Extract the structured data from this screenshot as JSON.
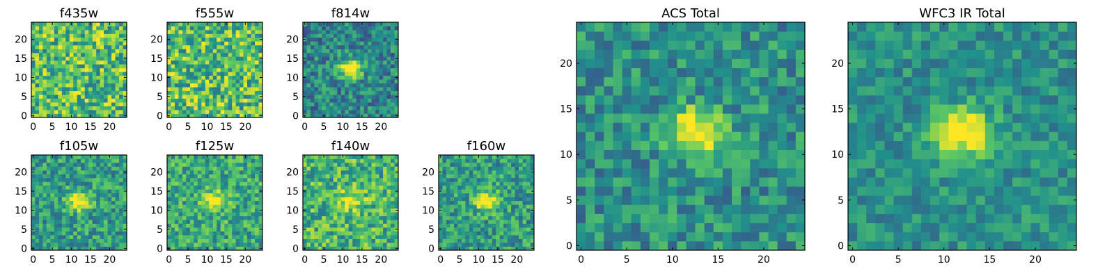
{
  "figure": {
    "colormap": [
      "#440154",
      "#3b528b",
      "#21918c",
      "#5ec962",
      "#fde725"
    ],
    "axes_color": "#000000",
    "background": "#ffffff"
  },
  "chart_data": [
    {
      "type": "heatmap",
      "title": "f435w",
      "size": 25,
      "xlim": [
        0,
        24
      ],
      "ylim": [
        0,
        24
      ],
      "xticks": [
        0,
        5,
        10,
        15,
        20
      ],
      "yticks": [
        0,
        5,
        10,
        15,
        20
      ],
      "peak": {
        "x": 12,
        "y": 12,
        "amplitude": 0.0
      },
      "noise": 0.6,
      "base": 0.7
    },
    {
      "type": "heatmap",
      "title": "f555w",
      "size": 25,
      "xlim": [
        0,
        24
      ],
      "ylim": [
        0,
        24
      ],
      "xticks": [
        0,
        5,
        10,
        15,
        20
      ],
      "yticks": [
        0,
        5,
        10,
        15,
        20
      ],
      "peak": {
        "x": 12,
        "y": 12,
        "amplitude": 0.0
      },
      "noise": 0.6,
      "base": 0.7
    },
    {
      "type": "heatmap",
      "title": "f814w",
      "size": 25,
      "xlim": [
        0,
        24
      ],
      "ylim": [
        0,
        24
      ],
      "xticks": [
        0,
        5,
        10,
        15,
        20
      ],
      "yticks": [
        0,
        5,
        10,
        15,
        20
      ],
      "peak": {
        "x": 12,
        "y": 12.5,
        "amplitude": 0.7
      },
      "noise": 0.45,
      "base": 0.45
    },
    {
      "type": "heatmap",
      "title": "f105w",
      "size": 25,
      "xlim": [
        0,
        24
      ],
      "ylim": [
        0,
        24
      ],
      "xticks": [
        0,
        5,
        10,
        15,
        20
      ],
      "yticks": [
        0,
        5,
        10,
        15,
        20
      ],
      "peak": {
        "x": 12,
        "y": 12.5,
        "amplitude": 0.55
      },
      "noise": 0.45,
      "base": 0.55
    },
    {
      "type": "heatmap",
      "title": "f125w",
      "size": 25,
      "xlim": [
        0,
        24
      ],
      "ylim": [
        0,
        24
      ],
      "xticks": [
        0,
        5,
        10,
        15,
        20
      ],
      "yticks": [
        0,
        5,
        10,
        15,
        20
      ],
      "peak": {
        "x": 12,
        "y": 12.5,
        "amplitude": 0.45
      },
      "noise": 0.45,
      "base": 0.6
    },
    {
      "type": "heatmap",
      "title": "f140w",
      "size": 25,
      "xlim": [
        0,
        24
      ],
      "ylim": [
        0,
        24
      ],
      "xticks": [
        0,
        5,
        10,
        15,
        20
      ],
      "yticks": [
        0,
        5,
        10,
        15,
        20
      ],
      "peak": {
        "x": 12,
        "y": 12.5,
        "amplitude": 0.4
      },
      "noise": 0.5,
      "base": 0.65
    },
    {
      "type": "heatmap",
      "title": "f160w",
      "size": 25,
      "xlim": [
        0,
        24
      ],
      "ylim": [
        0,
        24
      ],
      "xticks": [
        0,
        5,
        10,
        15,
        20
      ],
      "yticks": [
        0,
        5,
        10,
        15,
        20
      ],
      "peak": {
        "x": 12,
        "y": 12.5,
        "amplitude": 0.55
      },
      "noise": 0.45,
      "base": 0.55
    },
    {
      "type": "heatmap",
      "title": "ACS Total",
      "size": 25,
      "xlim": [
        0,
        24
      ],
      "ylim": [
        0,
        24
      ],
      "xticks": [
        0,
        5,
        10,
        15,
        20
      ],
      "yticks": [
        0,
        5,
        10,
        15,
        20
      ],
      "peak": {
        "x": 12.5,
        "y": 12.5,
        "amplitude": 0.6
      },
      "noise": 0.4,
      "base": 0.5
    },
    {
      "type": "heatmap",
      "title": "WFC3 IR Total",
      "size": 25,
      "xlim": [
        0,
        24
      ],
      "ylim": [
        0,
        24
      ],
      "xticks": [
        0,
        5,
        10,
        15,
        20
      ],
      "yticks": [
        0,
        5,
        10,
        15,
        20
      ],
      "peak": {
        "x": 12,
        "y": 12.5,
        "amplitude": 0.65
      },
      "noise": 0.3,
      "base": 0.5
    }
  ]
}
